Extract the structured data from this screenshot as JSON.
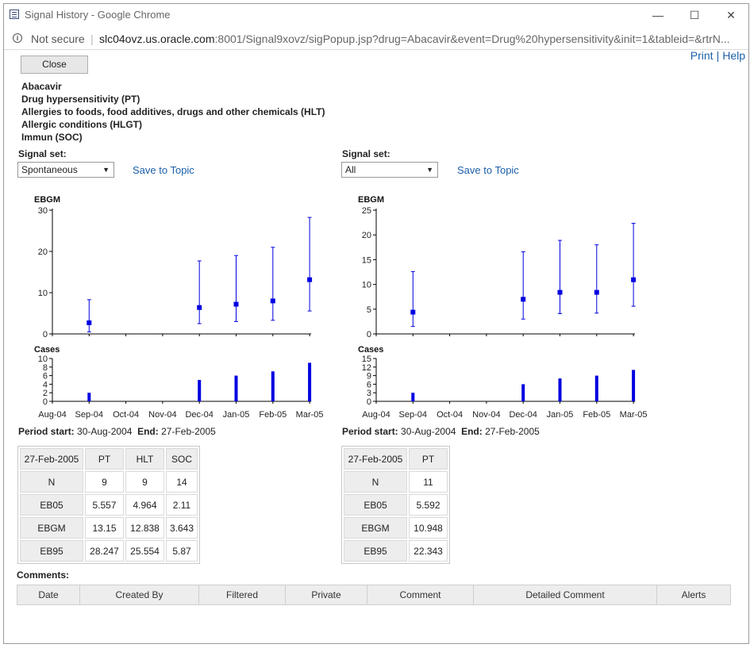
{
  "window": {
    "title": "Signal History - Google Chrome",
    "minimize": "—",
    "maximize": "☐",
    "close": "✕"
  },
  "address": {
    "security": "Not secure",
    "host": "slc04ovz.us.oracle.com",
    "rest": ":8001/Signal9xovz/sigPopup.jsp?drug=Abacavir&event=Drug%20hypersensitivity&init=1&tableid=&rtrN..."
  },
  "links": {
    "print": "Print",
    "separator": "|",
    "help": "Help"
  },
  "close_button": "Close",
  "hierarchy": [
    "Abacavir",
    "Drug hypersensitivity (PT)",
    "Allergies to foods, food additives, drugs and other chemicals (HLT)",
    "Allergic conditions (HLGT)",
    "Immun (SOC)"
  ],
  "panels": [
    {
      "signal_set_label": "Signal set:",
      "signal_set_value": "Spontaneous",
      "save_link": "Save to Topic",
      "period_start_label": "Period start:",
      "period_start": "30-Aug-2004",
      "period_end_label": "End:",
      "period_end": "27-Feb-2005",
      "table": {
        "headers": [
          "27-Feb-2005",
          "PT",
          "HLT",
          "SOC"
        ],
        "rows": [
          [
            "N",
            "9",
            "9",
            "14"
          ],
          [
            "EB05",
            "5.557",
            "4.964",
            "2.11"
          ],
          [
            "EBGM",
            "13.15",
            "12.838",
            "3.643"
          ],
          [
            "EB95",
            "28.247",
            "25.554",
            "5.87"
          ]
        ]
      }
    },
    {
      "signal_set_label": "Signal set:",
      "signal_set_value": "All",
      "save_link": "Save to Topic",
      "period_start_label": "Period start:",
      "period_start": "30-Aug-2004",
      "period_end_label": "End:",
      "period_end": "27-Feb-2005",
      "table": {
        "headers": [
          "27-Feb-2005",
          "PT"
        ],
        "rows": [
          [
            "N",
            "11"
          ],
          [
            "EB05",
            "5.592"
          ],
          [
            "EBGM",
            "10.948"
          ],
          [
            "EB95",
            "22.343"
          ]
        ]
      }
    }
  ],
  "chart_data": [
    {
      "type": "scatter",
      "title": "EBGM",
      "categories": [
        "Aug-04",
        "Sep-04",
        "Oct-04",
        "Nov-04",
        "Dec-04",
        "Jan-05",
        "Feb-05",
        "Mar-05"
      ],
      "ylim": [
        0,
        30
      ],
      "yticks": [
        0,
        10,
        20,
        30
      ],
      "points": [
        {
          "x": "Sep-04",
          "y": 2.7,
          "low": 0.5,
          "high": 8.3
        },
        {
          "x": "Dec-04",
          "y": 6.4,
          "low": 2.5,
          "high": 17.7
        },
        {
          "x": "Jan-05",
          "y": 7.2,
          "low": 3.0,
          "high": 19.0
        },
        {
          "x": "Feb-05",
          "y": 8.0,
          "low": 3.3,
          "high": 21.0
        },
        {
          "x": "Mar-05",
          "y": 13.15,
          "low": 5.557,
          "high": 28.247
        }
      ],
      "color": "#0000e0"
    },
    {
      "type": "bar",
      "title": "Cases",
      "categories": [
        "Aug-04",
        "Sep-04",
        "Oct-04",
        "Nov-04",
        "Dec-04",
        "Jan-05",
        "Feb-05",
        "Mar-05"
      ],
      "ylim": [
        0,
        10
      ],
      "yticks": [
        0,
        2,
        4,
        6,
        8,
        10
      ],
      "values": [
        0,
        2,
        0,
        0,
        5,
        6,
        7,
        9
      ],
      "color": "#0000e0"
    },
    {
      "type": "scatter",
      "title": "EBGM",
      "categories": [
        "Aug-04",
        "Sep-04",
        "Oct-04",
        "Nov-04",
        "Dec-04",
        "Jan-05",
        "Feb-05",
        "Mar-05"
      ],
      "ylim": [
        0,
        25
      ],
      "yticks": [
        0,
        5,
        10,
        15,
        20,
        25
      ],
      "points": [
        {
          "x": "Sep-04",
          "y": 4.4,
          "low": 1.5,
          "high": 12.6
        },
        {
          "x": "Dec-04",
          "y": 7.0,
          "low": 3.0,
          "high": 16.6
        },
        {
          "x": "Jan-05",
          "y": 8.4,
          "low": 4.1,
          "high": 18.9
        },
        {
          "x": "Feb-05",
          "y": 8.4,
          "low": 4.2,
          "high": 18.0
        },
        {
          "x": "Mar-05",
          "y": 10.948,
          "low": 5.592,
          "high": 22.343
        }
      ],
      "color": "#0000e0"
    },
    {
      "type": "bar",
      "title": "Cases",
      "categories": [
        "Aug-04",
        "Sep-04",
        "Oct-04",
        "Nov-04",
        "Dec-04",
        "Jan-05",
        "Feb-05",
        "Mar-05"
      ],
      "ylim": [
        0,
        15
      ],
      "yticks": [
        0,
        3,
        6,
        9,
        12,
        15
      ],
      "values": [
        0,
        3,
        0,
        0,
        6,
        8,
        9,
        11
      ],
      "color": "#0000e0"
    }
  ],
  "comments": {
    "label": "Comments:",
    "columns": [
      "Date",
      "Created By",
      "Filtered",
      "Private",
      "Comment",
      "Detailed Comment",
      "Alerts"
    ]
  }
}
